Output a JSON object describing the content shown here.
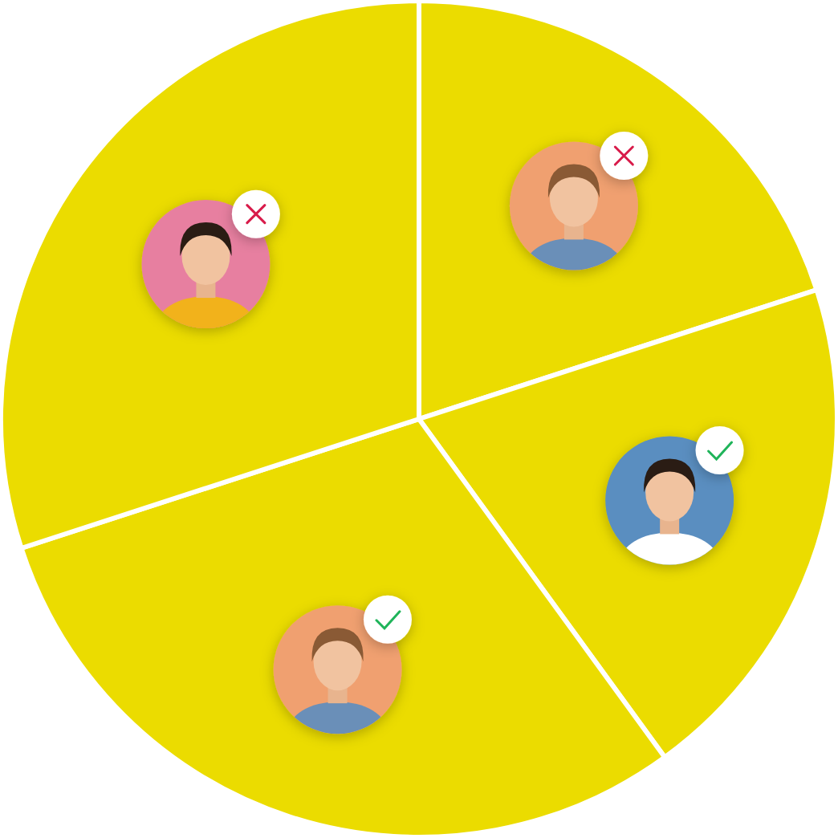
{
  "chart_data": {
    "type": "pie",
    "values": [
      20,
      20,
      30,
      30
    ],
    "color": "#ebdc00"
  }
}
